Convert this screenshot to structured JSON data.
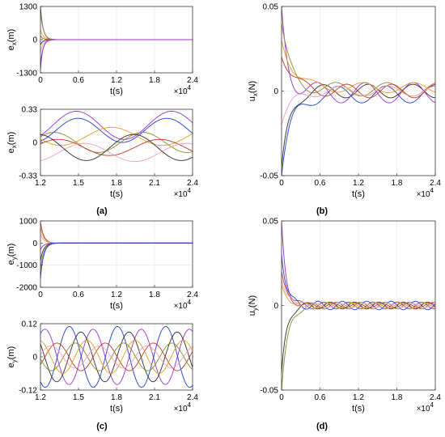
{
  "figure": {
    "panel_labels": [
      "(a)",
      "(b)",
      "(c)",
      "(d)"
    ],
    "exponent_label": "×10",
    "exponent_value": "4"
  },
  "chart_data": [
    {
      "id": "a1",
      "type": "line",
      "xlabel": "t(s)",
      "ylabel": "e_x(m)",
      "xlim": [
        0,
        2.4
      ],
      "ylim": [
        -1300,
        1300
      ],
      "xticks": [
        0,
        0.6,
        1.2,
        1.8,
        2.4
      ],
      "xtick_labels": [
        "0",
        "0.6",
        "1.2",
        "1.8",
        "2.4"
      ],
      "yticks": [
        -1300,
        0,
        1300
      ],
      "ytick_labels": [
        "-1300",
        "0",
        "1300"
      ],
      "x_scale_label": "×10^4",
      "grid": true,
      "series": [
        {
          "color": "#6a1b9a",
          "shape": "decay",
          "values": {
            "y0": 1300,
            "tau": 0.04
          }
        },
        {
          "color": "#8a8a2a",
          "shape": "decay",
          "values": {
            "y0": 1100,
            "tau": 0.045
          }
        },
        {
          "color": "#e6a020",
          "shape": "decay",
          "values": {
            "y0": 400,
            "tau": 0.045
          }
        },
        {
          "color": "#c0392b",
          "shape": "decay",
          "values": {
            "y0": 150,
            "tau": 0.04
          }
        },
        {
          "color": "#2c2c2c",
          "shape": "decay",
          "values": {
            "y0": -200,
            "tau": 0.04
          }
        },
        {
          "color": "#f0a0b0",
          "shape": "decay",
          "values": {
            "y0": -500,
            "tau": 0.04
          }
        },
        {
          "color": "#1f3fd0",
          "shape": "decay",
          "values": {
            "y0": -1000,
            "tau": 0.04
          }
        },
        {
          "color": "#9b30d0",
          "shape": "decay",
          "values": {
            "y0": -1200,
            "tau": 0.035
          }
        }
      ]
    },
    {
      "id": "a2",
      "type": "line",
      "xlabel": "t(s)",
      "ylabel": "e_x(m)",
      "xlim": [
        1.2,
        2.4
      ],
      "ylim": [
        -0.33,
        0.33
      ],
      "xticks": [
        1.2,
        1.5,
        1.8,
        2.1,
        2.4
      ],
      "xtick_labels": [
        "1.2",
        "1.5",
        "1.8",
        "2.1",
        "2.4"
      ],
      "yticks": [
        -0.33,
        0,
        0.33
      ],
      "ytick_labels": [
        "-0.33",
        "0",
        "0.33"
      ],
      "x_scale_label": "×10^4",
      "grid": true,
      "series": [
        {
          "color": "#9b30d0",
          "shape": "sine",
          "values": {
            "amp": 0.14,
            "period": 0.75,
            "phase": 1.7,
            "offset": 0.17
          }
        },
        {
          "color": "#1f3fd0",
          "shape": "sine",
          "values": {
            "amp": 0.12,
            "period": 0.7,
            "phase": 0.7,
            "offset": 0.12
          }
        },
        {
          "color": "#e6a020",
          "shape": "sine",
          "values": {
            "amp": 0.09,
            "period": 0.8,
            "phase": 0.3,
            "offset": 0.06
          }
        },
        {
          "color": "#8a8a2a",
          "shape": "sine",
          "values": {
            "amp": 0.1,
            "period": 0.7,
            "phase": 2.4,
            "offset": 0.0
          }
        },
        {
          "color": "#c0392b",
          "shape": "sine",
          "values": {
            "amp": 0.08,
            "period": 0.8,
            "phase": 3.6,
            "offset": -0.05
          }
        },
        {
          "color": "#f0a0b0",
          "shape": "sine",
          "values": {
            "amp": 0.09,
            "period": 0.8,
            "phase": 2.0,
            "offset": -0.1
          }
        },
        {
          "color": "#2c2c2c",
          "shape": "sine",
          "values": {
            "amp": 0.13,
            "period": 0.75,
            "phase": 4.2,
            "offset": -0.05
          }
        }
      ]
    },
    {
      "id": "b",
      "type": "line",
      "xlabel": "t(s)",
      "ylabel": "u_x(N)",
      "xlim": [
        0,
        2.4
      ],
      "ylim": [
        -0.05,
        0.05
      ],
      "xticks": [
        0,
        0.6,
        1.2,
        1.8,
        2.4
      ],
      "xtick_labels": [
        "0",
        "0.6",
        "1.2",
        "1.8",
        "2.4"
      ],
      "yticks": [
        -0.05,
        0,
        0.05
      ],
      "ytick_labels": [
        "-0.05",
        "0",
        "0.05"
      ],
      "x_scale_label": "×10^4",
      "grid": true,
      "series": [
        {
          "color": "#1f3fd0",
          "shape": "damped",
          "values": {
            "y0": -0.05,
            "tau": 0.15,
            "amp": 0.005,
            "period": 0.75,
            "phase": 0.5,
            "offset": -0.002
          }
        },
        {
          "color": "#2c2c2c",
          "shape": "damped",
          "values": {
            "y0": -0.045,
            "tau": 0.12,
            "amp": 0.004,
            "period": 0.7,
            "phase": 2.0,
            "offset": 0.0
          }
        },
        {
          "color": "#9b30d0",
          "shape": "damped",
          "values": {
            "y0": 0.05,
            "tau": 0.1,
            "amp": 0.006,
            "period": 0.75,
            "phase": 3.2,
            "offset": -0.001
          }
        },
        {
          "color": "#8a8a2a",
          "shape": "damped",
          "values": {
            "y0": 0.04,
            "tau": 0.15,
            "amp": 0.004,
            "period": 0.8,
            "phase": 1.2,
            "offset": 0.001
          }
        },
        {
          "color": "#e6a020",
          "shape": "damped",
          "values": {
            "y0": 0.03,
            "tau": 0.18,
            "amp": 0.003,
            "period": 0.8,
            "phase": 4.2,
            "offset": 0.002
          }
        },
        {
          "color": "#c0392b",
          "shape": "damped",
          "values": {
            "y0": 0.02,
            "tau": 0.2,
            "amp": 0.004,
            "period": 0.7,
            "phase": 5.0,
            "offset": 0.0
          }
        },
        {
          "color": "#f0a0b0",
          "shape": "damped",
          "values": {
            "y0": -0.02,
            "tau": 0.15,
            "amp": 0.003,
            "period": 0.75,
            "phase": 0.2,
            "offset": 0.0
          }
        }
      ]
    },
    {
      "id": "c1",
      "type": "line",
      "xlabel": "t(s)",
      "ylabel": "e_y(m)",
      "xlim": [
        0,
        2.4
      ],
      "ylim": [
        -2000,
        1000
      ],
      "xticks": [
        0,
        0.6,
        1.2,
        1.8,
        2.4
      ],
      "xtick_labels": [
        "0",
        "0.6",
        "1.2",
        "1.8",
        "2.4"
      ],
      "yticks": [
        -2000,
        -1000,
        0,
        1000
      ],
      "ytick_labels": [
        "-2000",
        "-1000",
        "0",
        "1000"
      ],
      "x_scale_label": "×10^4",
      "grid": true,
      "series": [
        {
          "color": "#c0392b",
          "shape": "decay",
          "values": {
            "y0": 950,
            "tau": 0.05
          }
        },
        {
          "color": "#e6a020",
          "shape": "decay",
          "values": {
            "y0": 700,
            "tau": 0.05
          }
        },
        {
          "color": "#f0a0b0",
          "shape": "decay",
          "values": {
            "y0": 400,
            "tau": 0.05
          }
        },
        {
          "color": "#9b30d0",
          "shape": "decay",
          "values": {
            "y0": -300,
            "tau": 0.05
          }
        },
        {
          "color": "#2c2c2c",
          "shape": "decay",
          "values": {
            "y0": -800,
            "tau": 0.05
          }
        },
        {
          "color": "#8a8a2a",
          "shape": "decay",
          "values": {
            "y0": -1200,
            "tau": 0.05
          }
        },
        {
          "color": "#1f3fd0",
          "shape": "decay",
          "values": {
            "y0": -1600,
            "tau": 0.05
          }
        }
      ]
    },
    {
      "id": "c2",
      "type": "line",
      "xlabel": "t(s)",
      "ylabel": "e_y(m)",
      "xlim": [
        1.2,
        2.4
      ],
      "ylim": [
        -0.12,
        0.12
      ],
      "xticks": [
        1.2,
        1.5,
        1.8,
        2.1,
        2.4
      ],
      "xtick_labels": [
        "1.2",
        "1.5",
        "1.8",
        "2.1",
        "2.4"
      ],
      "yticks": [
        -0.12,
        0,
        0.12
      ],
      "ytick_labels": [
        "-0.12",
        "0",
        "0.12"
      ],
      "x_scale_label": "×10^4",
      "grid": true,
      "series": [
        {
          "color": "#9b30d0",
          "shape": "sine",
          "values": {
            "amp": 0.1,
            "period": 0.38,
            "phase": 0.0,
            "offset": 0
          }
        },
        {
          "color": "#1f3fd0",
          "shape": "sine",
          "values": {
            "amp": 0.11,
            "period": 0.38,
            "phase": 3.1,
            "offset": 0
          }
        },
        {
          "color": "#2c2c2c",
          "shape": "sine",
          "values": {
            "amp": 0.09,
            "period": 0.38,
            "phase": 1.6,
            "offset": 0
          }
        },
        {
          "color": "#c0392b",
          "shape": "sine",
          "values": {
            "amp": 0.05,
            "period": 0.38,
            "phase": 4.7,
            "offset": 0
          }
        },
        {
          "color": "#e6a020",
          "shape": "sine",
          "values": {
            "amp": 0.06,
            "period": 0.38,
            "phase": 0.8,
            "offset": 0
          }
        },
        {
          "color": "#8a8a2a",
          "shape": "sine",
          "values": {
            "amp": 0.05,
            "period": 0.38,
            "phase": 2.3,
            "offset": 0
          }
        },
        {
          "color": "#f0a0b0",
          "shape": "sine",
          "values": {
            "amp": 0.04,
            "period": 0.38,
            "phase": 5.5,
            "offset": 0
          }
        }
      ]
    },
    {
      "id": "d",
      "type": "line",
      "xlabel": "t(s)",
      "ylabel": "u_y(N)",
      "xlim": [
        0,
        2.4
      ],
      "ylim": [
        -0.05,
        0.05
      ],
      "xticks": [
        0,
        0.6,
        1.2,
        1.8,
        2.4
      ],
      "xtick_labels": [
        "0",
        "0.6",
        "1.2",
        "1.8",
        "2.4"
      ],
      "yticks": [
        -0.05,
        0,
        0.05
      ],
      "ytick_labels": [
        "-0.05",
        "0",
        "0.05"
      ],
      "x_scale_label": "×10^4",
      "grid": true,
      "series": [
        {
          "color": "#8a8a2a",
          "shape": "damped",
          "values": {
            "y0": -0.05,
            "tau": 0.1,
            "amp": 0.002,
            "period": 0.38,
            "phase": 0.0,
            "offset": 0
          }
        },
        {
          "color": "#2c2c2c",
          "shape": "damped",
          "values": {
            "y0": -0.04,
            "tau": 0.08,
            "amp": 0.002,
            "period": 0.38,
            "phase": 1.6,
            "offset": 0
          }
        },
        {
          "color": "#9b30d0",
          "shape": "damped",
          "values": {
            "y0": 0.05,
            "tau": 0.07,
            "amp": 0.002,
            "period": 0.38,
            "phase": 3.1,
            "offset": 0
          }
        },
        {
          "color": "#1f3fd0",
          "shape": "damped",
          "values": {
            "y0": 0.03,
            "tau": 0.08,
            "amp": 0.0025,
            "period": 0.38,
            "phase": 4.7,
            "offset": 0
          }
        },
        {
          "color": "#c0392b",
          "shape": "damped",
          "values": {
            "y0": 0.02,
            "tau": 0.09,
            "amp": 0.0015,
            "period": 0.38,
            "phase": 0.8,
            "offset": 0
          }
        },
        {
          "color": "#e6a020",
          "shape": "damped",
          "values": {
            "y0": 0.012,
            "tau": 0.1,
            "amp": 0.0015,
            "period": 0.38,
            "phase": 2.3,
            "offset": 0
          }
        },
        {
          "color": "#f0a0b0",
          "shape": "damped",
          "values": {
            "y0": 0.015,
            "tau": 0.1,
            "amp": 0.0012,
            "period": 0.38,
            "phase": 5.5,
            "offset": 0
          }
        }
      ]
    }
  ]
}
